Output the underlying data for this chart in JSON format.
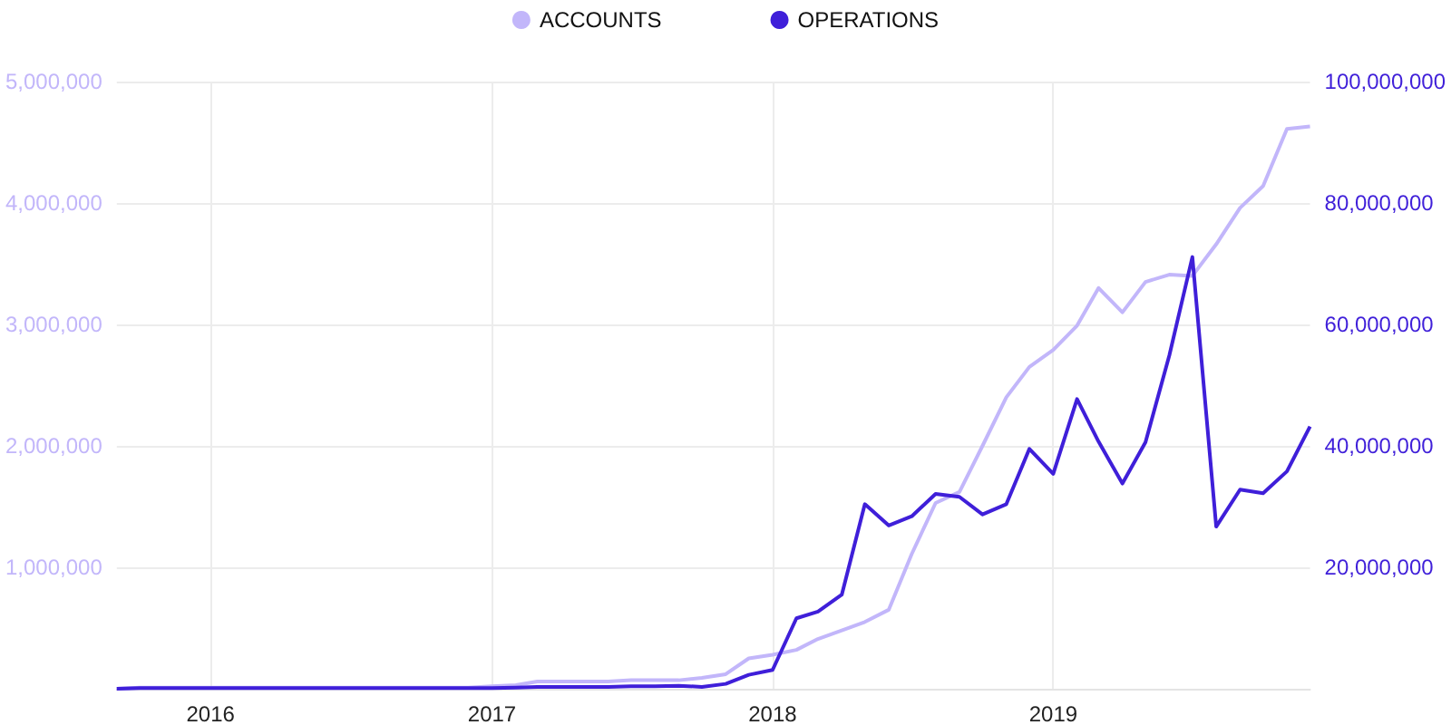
{
  "chart_data": {
    "type": "line",
    "x": [
      "2015-09",
      "2015-10",
      "2015-11",
      "2015-12",
      "2016-01",
      "2016-02",
      "2016-03",
      "2016-04",
      "2016-05",
      "2016-06",
      "2016-07",
      "2016-08",
      "2016-09",
      "2016-10",
      "2016-11",
      "2016-12",
      "2017-01",
      "2017-02",
      "2017-03",
      "2017-04",
      "2017-05",
      "2017-06",
      "2017-07",
      "2017-08",
      "2017-09",
      "2017-10",
      "2017-11",
      "2017-12",
      "2018-01",
      "2018-02",
      "2018-03",
      "2018-04",
      "2018-05",
      "2018-06",
      "2018-07",
      "2018-08",
      "2018-09",
      "2018-10",
      "2018-11",
      "2018-12",
      "2019-01",
      "2019-02",
      "2019-03",
      "2019-04",
      "2019-05",
      "2019-06",
      "2019-07",
      "2019-08",
      "2019-09",
      "2019-10",
      "2019-11",
      "2019-12"
    ],
    "series": [
      {
        "name": "ACCOUNTS",
        "color": "#c2b6fa",
        "values": [
          0,
          10000,
          10000,
          10000,
          10000,
          10000,
          10000,
          10000,
          10000,
          10000,
          10000,
          10000,
          10000,
          10000,
          10000,
          10000,
          20000,
          30000,
          60000,
          60000,
          60000,
          60000,
          70000,
          70000,
          70000,
          90000,
          120000,
          250000,
          280000,
          320000,
          410000,
          480000,
          550000,
          650000,
          1110000,
          1530000,
          1620000,
          2000000,
          2400000,
          2650000,
          2790000,
          2990000,
          3300000,
          3100000,
          3350000,
          3410000,
          3400000,
          3660000,
          3960000,
          4140000,
          4610000,
          4630000
        ]
      },
      {
        "name": "OPERATIONS",
        "color": "#3f1fd9",
        "axis": "y2",
        "values": [
          0,
          100000,
          100000,
          100000,
          100000,
          100000,
          100000,
          100000,
          100000,
          100000,
          100000,
          100000,
          100000,
          100000,
          100000,
          100000,
          100000,
          200000,
          300000,
          300000,
          300000,
          300000,
          400000,
          400000,
          500000,
          300000,
          800000,
          2300000,
          3100000,
          11600000,
          12700000,
          15500000,
          30400000,
          26900000,
          28400000,
          32100000,
          31600000,
          28700000,
          30400000,
          39500000,
          35400000,
          47700000,
          40700000,
          33800000,
          40600000,
          54900000,
          71100000,
          26700000,
          32800000,
          32200000,
          35800000,
          43200000
        ]
      }
    ],
    "xlim": [
      "2015-09",
      "2019-12"
    ],
    "xticks": [
      {
        "value": "2016-01",
        "label": "2016"
      },
      {
        "value": "2017-01",
        "label": "2017"
      },
      {
        "value": "2018-01",
        "label": "2018"
      },
      {
        "value": "2019-01",
        "label": "2019"
      }
    ],
    "ylim": [
      0,
      5000000
    ],
    "yticks": [
      {
        "value": 1000000,
        "label": "1,000,000"
      },
      {
        "value": 2000000,
        "label": "2,000,000"
      },
      {
        "value": 3000000,
        "label": "3,000,000"
      },
      {
        "value": 4000000,
        "label": "4,000,000"
      },
      {
        "value": 5000000,
        "label": "5,000,000"
      }
    ],
    "y2lim": [
      0,
      100000000
    ],
    "y2ticks": [
      {
        "value": 20000000,
        "label": "20,000,000"
      },
      {
        "value": 40000000,
        "label": "40,000,000"
      },
      {
        "value": 60000000,
        "label": "60,000,000"
      },
      {
        "value": 80000000,
        "label": "80,000,000"
      },
      {
        "value": 100000000,
        "label": "100,000,000"
      }
    ],
    "grid": true,
    "legend": "top",
    "marker": "none",
    "line_style": "solid"
  }
}
